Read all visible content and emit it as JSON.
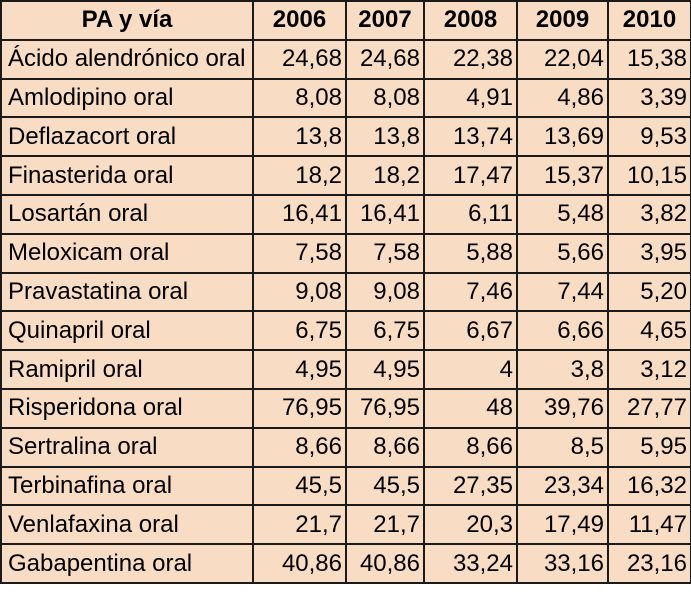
{
  "table": {
    "headers": [
      "PA y vía",
      "2006",
      "2007",
      "2008",
      "2009",
      "2010"
    ],
    "rows": [
      [
        "Ácido alendrónico oral",
        "24,68",
        "24,68",
        "22,38",
        "22,04",
        "15,38"
      ],
      [
        "Amlodipino oral",
        "8,08",
        "8,08",
        "4,91",
        "4,86",
        "3,39"
      ],
      [
        "Deflazacort oral",
        "13,8",
        "13,8",
        "13,74",
        "13,69",
        "9,53"
      ],
      [
        "Finasterida oral",
        "18,2",
        "18,2",
        "17,47",
        "15,37",
        "10,15"
      ],
      [
        "Losartán oral",
        "16,41",
        "16,41",
        "6,11",
        "5,48",
        "3,82"
      ],
      [
        "Meloxicam oral",
        "7,58",
        "7,58",
        "5,88",
        "5,66",
        "3,95"
      ],
      [
        "Pravastatina oral",
        "9,08",
        "9,08",
        "7,46",
        "7,44",
        "5,20"
      ],
      [
        "Quinapril oral",
        "6,75",
        "6,75",
        "6,67",
        "6,66",
        "4,65"
      ],
      [
        "Ramipril oral",
        "4,95",
        "4,95",
        "4",
        "3,8",
        "3,12"
      ],
      [
        "Risperidona oral",
        "76,95",
        "76,95",
        "48",
        "39,76",
        "27,77"
      ],
      [
        "Sertralina oral",
        "8,66",
        "8,66",
        "8,66",
        "8,5",
        "5,95"
      ],
      [
        "Terbinafina oral",
        "45,5",
        "45,5",
        "27,35",
        "23,34",
        "16,32"
      ],
      [
        "Venlafaxina oral",
        "21,7",
        "21,7",
        "20,3",
        "17,49",
        "11,47"
      ],
      [
        "Gabapentina oral",
        "40,86",
        "40,86",
        "33,24",
        "33,16",
        "23,16"
      ]
    ]
  }
}
